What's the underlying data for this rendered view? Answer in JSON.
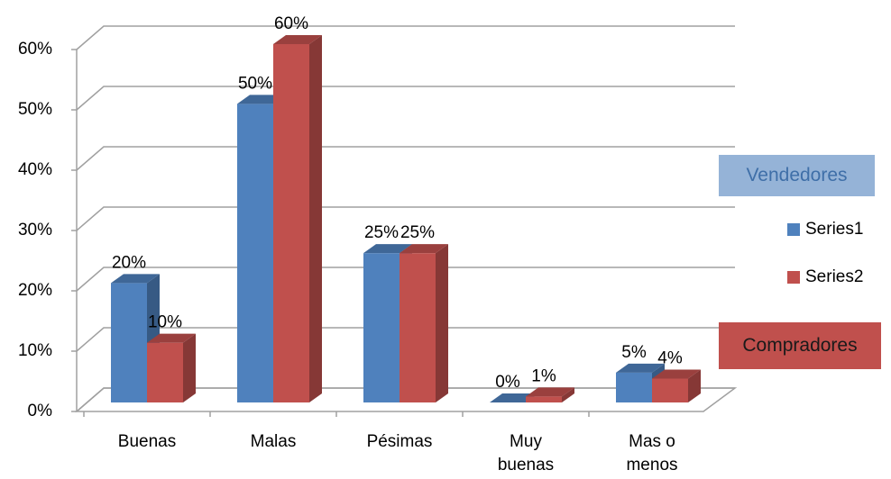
{
  "chart_data": {
    "type": "bar3d",
    "categories": [
      "Buenas",
      "Malas",
      "Pésimas",
      "Muy buenas",
      "Mas o menos"
    ],
    "series": [
      {
        "name": "Series1",
        "color": "#4f81bd",
        "values": [
          20,
          50,
          25,
          0,
          5
        ],
        "value_labels": [
          "20%",
          "50%",
          "25%",
          "0%",
          "5%"
        ]
      },
      {
        "name": "Series2",
        "color": "#c0504d",
        "values": [
          10,
          60,
          25,
          1,
          4
        ],
        "value_labels": [
          "10%",
          "60%",
          "25%",
          "1%",
          "4%"
        ]
      }
    ],
    "ylim": [
      0,
      60
    ],
    "yticks": [
      {
        "value": 0,
        "label": "0%"
      },
      {
        "value": 10,
        "label": "10%"
      },
      {
        "value": 20,
        "label": "20%"
      },
      {
        "value": 30,
        "label": "30%"
      },
      {
        "value": 40,
        "label": "40%"
      },
      {
        "value": 50,
        "label": "50%"
      },
      {
        "value": 60,
        "label": "60%"
      }
    ],
    "grid": true,
    "legend": "right",
    "annotations": [
      {
        "text": "Vendedores",
        "color": "#95b3d7",
        "text_color": "#3f6fa8"
      },
      {
        "text": "Compradores",
        "color": "#c0504d",
        "text_color": "#1a1a1a"
      }
    ]
  }
}
